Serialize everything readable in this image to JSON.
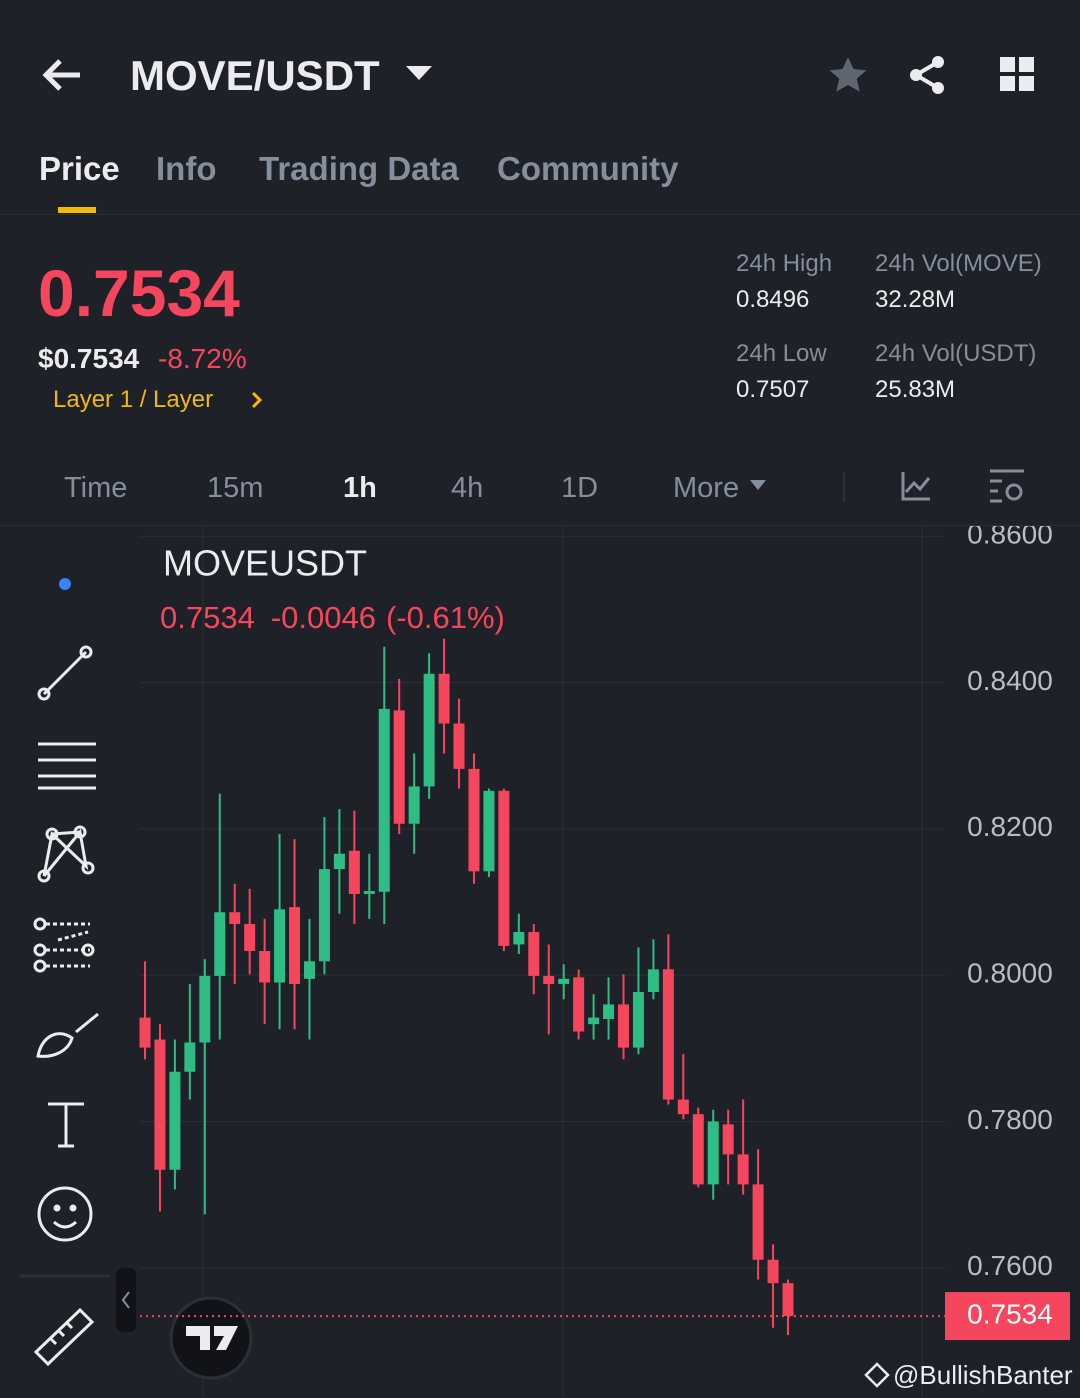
{
  "header": {
    "title": "MOVE/USDT"
  },
  "tabs": [
    "Price",
    "Info",
    "Trading Data",
    "Community"
  ],
  "price": {
    "last": "0.7534",
    "fiat": "$0.7534",
    "change": "-8.72%",
    "tag": "Layer 1 / Layer"
  },
  "stats": [
    {
      "label": "24h High",
      "value": "0.8496"
    },
    {
      "label": "24h Vol(MOVE)",
      "value": "32.28M"
    },
    {
      "label": "24h Low",
      "value": "0.7507"
    },
    {
      "label": "24h Vol(USDT)",
      "value": "25.83M"
    }
  ],
  "intervals": [
    "Time",
    "15m",
    "1h",
    "4h",
    "1D",
    "More"
  ],
  "watermark": "@BullishBanter",
  "chart_data": {
    "type": "candlestick",
    "title": "MOVEUSDT",
    "info": {
      "close": "0.7534",
      "change": "-0.0046",
      "change_pct": "(-0.61%)"
    },
    "up_color": "#2ebd85",
    "down_color": "#f6465d",
    "open": [
      0.7942,
      0.7912,
      0.7734,
      0.7868,
      0.7908,
      0.7999,
      0.8086,
      0.807,
      0.8033,
      0.799,
      0.8093,
      0.7995,
      0.8019,
      0.8145,
      0.817,
      0.8111,
      0.8114,
      0.8362,
      0.8207,
      0.8258,
      0.8412,
      0.8344,
      0.8282,
      0.8142,
      0.8252,
      0.8042,
      0.8059,
      0.7999,
      0.7988,
      0.7997,
      0.7933,
      0.794,
      0.796,
      0.7901,
      0.7977,
      0.8008,
      0.783,
      0.781,
      0.7714,
      0.7796,
      0.7755,
      0.7714,
      0.7611,
      0.7579
    ],
    "high": [
      0.8019,
      0.7933,
      0.7912,
      0.7988,
      0.8022,
      0.8248,
      0.8125,
      0.8118,
      0.8077,
      0.8193,
      0.8186,
      0.8077,
      0.8216,
      0.8227,
      0.8225,
      0.8166,
      0.8449,
      0.8405,
      0.8303,
      0.844,
      0.846,
      0.8378,
      0.8303,
      0.8255,
      0.8255,
      0.8084,
      0.807,
      0.8042,
      0.8015,
      0.8008,
      0.7974,
      0.7997,
      0.8001,
      0.8038,
      0.8049,
      0.8056,
      0.7892,
      0.7819,
      0.7816,
      0.7816,
      0.783,
      0.7762,
      0.7632,
      0.7584
    ],
    "low": [
      0.7885,
      0.7677,
      0.7707,
      0.783,
      0.7673,
      0.7912,
      0.7988,
      0.8001,
      0.7933,
      0.7926,
      0.7926,
      0.7912,
      0.8001,
      0.8084,
      0.807,
      0.8077,
      0.807,
      0.8193,
      0.8166,
      0.8241,
      0.8303,
      0.8255,
      0.8125,
      0.8134,
      0.8033,
      0.8029,
      0.7974,
      0.7919,
      0.7967,
      0.7912,
      0.7912,
      0.7912,
      0.7885,
      0.7892,
      0.7967,
      0.7823,
      0.7803,
      0.771,
      0.7693,
      0.7714,
      0.77,
      0.7584,
      0.7518,
      0.7508
    ],
    "close": [
      0.7901,
      0.7734,
      0.7868,
      0.7908,
      0.7999,
      0.8086,
      0.807,
      0.8033,
      0.799,
      0.809,
      0.7988,
      0.8019,
      0.8145,
      0.8166,
      0.8111,
      0.8115,
      0.8364,
      0.8207,
      0.8258,
      0.8412,
      0.8344,
      0.8282,
      0.8142,
      0.8252,
      0.804,
      0.8059,
      0.7999,
      0.7988,
      0.7995,
      0.7923,
      0.7942,
      0.796,
      0.7901,
      0.7977,
      0.8008,
      0.783,
      0.781,
      0.7714,
      0.78,
      0.7755,
      0.7714,
      0.7611,
      0.7579,
      0.7534
    ],
    "last_price": 0.7534,
    "ylim": [
      0.7422,
      0.8614
    ],
    "yticks": [
      {
        "value": 0.86,
        "label": "0.8600"
      },
      {
        "value": 0.84,
        "label": "0.8400"
      },
      {
        "value": 0.82,
        "label": "0.8200"
      },
      {
        "value": 0.8,
        "label": "0.8000"
      },
      {
        "value": 0.78,
        "label": "0.7800"
      },
      {
        "value": 0.76,
        "label": "0.7600"
      }
    ],
    "grid": true
  }
}
